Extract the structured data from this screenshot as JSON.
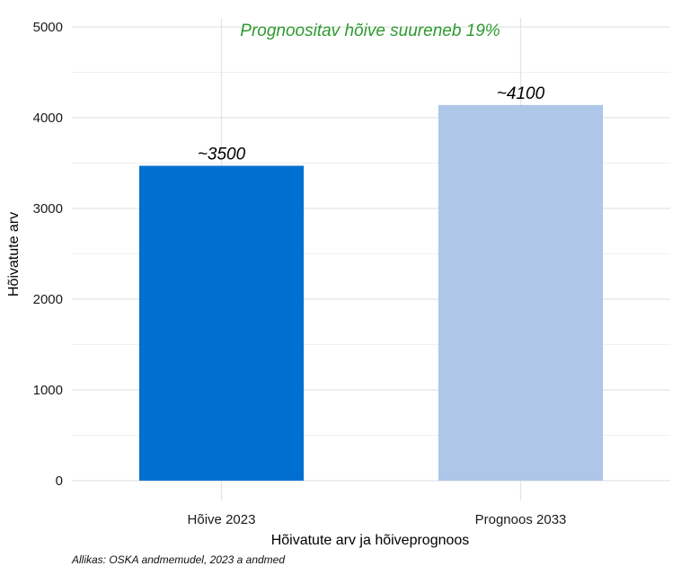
{
  "chart_data": {
    "type": "bar",
    "categories": [
      "Hõive 2023",
      "Prognoos 2033"
    ],
    "values": [
      3470,
      4140
    ],
    "data_labels": [
      "~3500",
      "~4100"
    ],
    "colors": [
      "#0070D0",
      "#AEC7E8"
    ],
    "annotation": "Prognoositav hõive suureneb 19%",
    "annotation_color": "#2E9A2E",
    "xlabel": "Hõivatute arv ja hõiveprognoos",
    "ylabel": "Hõivatute arv",
    "ylim": [
      0,
      5000
    ],
    "yticks": [
      0,
      1000,
      2000,
      3000,
      4000,
      5000
    ],
    "grid": true,
    "legend": "none"
  },
  "caption": "Allikas: OSKA andmemudel, 2023 a andmed"
}
